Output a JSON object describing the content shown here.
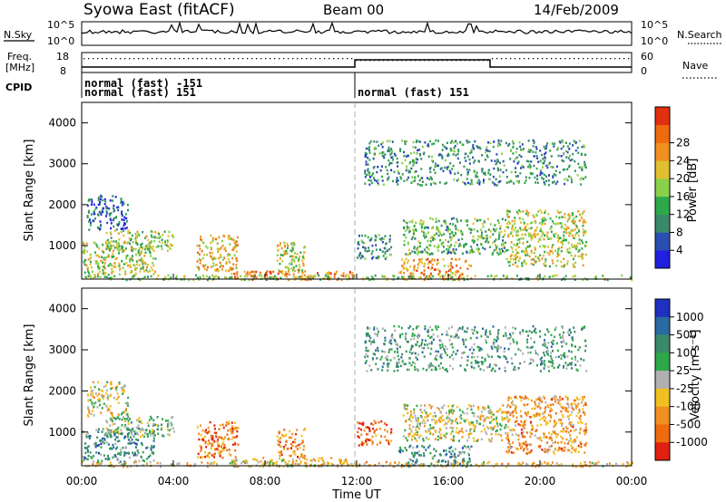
{
  "header": {
    "station": "Syowa East (fitACF)",
    "beam": "Beam 00",
    "date": "14/Feb/2009"
  },
  "top_panels": {
    "nsky_label": "N.Sky",
    "nsearch_label": "N.Search",
    "nsky_ticks": [
      "10^5",
      "10^0"
    ],
    "nsearch_ticks": [
      "10^5",
      "10^0"
    ],
    "freq_label_line1": "Freq.",
    "freq_label_line2": "[MHz]",
    "freq_ticks": [
      "18",
      "8"
    ],
    "nave_ticks": [
      "60",
      "0"
    ],
    "nave_label": "Nave",
    "cpid_label": "CPID",
    "cpid_entries": [
      "normal (fast) -151",
      "normal (fast) 151",
      "normal (fast) 151"
    ]
  },
  "x_axis": {
    "title": "Time UT",
    "ticks": [
      "00:00",
      "04:00",
      "08:00",
      "12:00",
      "16:00",
      "20:00",
      "00:00"
    ]
  },
  "power_panel": {
    "ylabel": "Slant Range [km]",
    "yticks": [
      "1000",
      "2000",
      "3000",
      "4000"
    ],
    "colorbar_label": "Power [dB]",
    "colorbar_ticks": [
      "4",
      "8",
      "12",
      "16",
      "20",
      "24",
      "28"
    ],
    "colors": [
      "#2020e0",
      "#2a4fb0",
      "#3a8a6a",
      "#2ea84a",
      "#8ad04a",
      "#e0c030",
      "#f09020",
      "#f06a10",
      "#e03010"
    ]
  },
  "velocity_panel": {
    "ylabel": "Slant Range [km]",
    "yticks": [
      "1000",
      "2000",
      "3000",
      "4000"
    ],
    "colorbar_label": "Velocity [m s⁻¹]",
    "colorbar_ticks": [
      "1000",
      "500",
      "100",
      "25",
      "-25",
      "-100",
      "-500",
      "-1000"
    ],
    "colors": [
      "#2030c0",
      "#2a6aa0",
      "#3a8a6a",
      "#2ea84a",
      "#b0b0b0",
      "#f0c020",
      "#f09020",
      "#f06a10",
      "#e02010"
    ]
  },
  "chart_data": [
    {
      "type": "heatmap",
      "title": "Power",
      "xlabel": "Time UT",
      "ylabel": "Slant Range [km]",
      "x_range_hours": [
        0,
        24
      ],
      "ylim": [
        180,
        4500
      ],
      "colorbar": {
        "label": "Power [dB]",
        "ticks": [
          4,
          8,
          12,
          16,
          20,
          24,
          28
        ]
      },
      "regions": [
        {
          "t0": 0.0,
          "t1": 3.2,
          "r0": 300,
          "r1": 1100,
          "level": 0.55
        },
        {
          "t0": 1.0,
          "t1": 4.0,
          "r0": 900,
          "r1": 1400,
          "level": 0.5
        },
        {
          "t0": 0.2,
          "t1": 2.0,
          "r0": 1400,
          "r1": 2250,
          "level": 0.2
        },
        {
          "t0": 5.0,
          "t1": 6.8,
          "r0": 400,
          "r1": 1300,
          "level": 0.65
        },
        {
          "t0": 8.5,
          "t1": 9.7,
          "r0": 400,
          "r1": 1100,
          "level": 0.55
        },
        {
          "t0": 6.5,
          "t1": 11.8,
          "r0": 180,
          "r1": 400,
          "level": 0.8
        },
        {
          "t0": 12.0,
          "t1": 13.5,
          "r0": 700,
          "r1": 1300,
          "level": 0.3
        },
        {
          "t0": 13.8,
          "t1": 17.0,
          "r0": 180,
          "r1": 700,
          "level": 0.75
        },
        {
          "t0": 14.0,
          "t1": 18.5,
          "r0": 800,
          "r1": 1700,
          "level": 0.4
        },
        {
          "t0": 18.5,
          "t1": 22.0,
          "r0": 500,
          "r1": 1900,
          "level": 0.55
        },
        {
          "t0": 12.3,
          "t1": 22.0,
          "r0": 2500,
          "r1": 3600,
          "level": 0.3
        },
        {
          "t0": 0.0,
          "t1": 24.0,
          "r0": 180,
          "r1": 300,
          "level": 0.45
        }
      ]
    },
    {
      "type": "heatmap",
      "title": "Velocity",
      "xlabel": "Time UT",
      "ylabel": "Slant Range [km]",
      "x_range_hours": [
        0,
        24
      ],
      "ylim": [
        180,
        4500
      ],
      "colorbar": {
        "label": "Velocity [m s^-1]",
        "ticks": [
          1000,
          500,
          100,
          25,
          -25,
          -100,
          -500,
          -1000
        ]
      },
      "regions": [
        {
          "t0": 0.0,
          "t1": 3.2,
          "r0": 300,
          "r1": 1100,
          "level": 0.3
        },
        {
          "t0": 1.0,
          "t1": 4.0,
          "r0": 900,
          "r1": 1400,
          "level": 0.45
        },
        {
          "t0": 0.2,
          "t1": 2.0,
          "r0": 1400,
          "r1": 2250,
          "level": 0.55
        },
        {
          "t0": 5.0,
          "t1": 6.8,
          "r0": 400,
          "r1": 1300,
          "level": 0.8
        },
        {
          "t0": 8.5,
          "t1": 9.7,
          "r0": 400,
          "r1": 1100,
          "level": 0.75
        },
        {
          "t0": 6.5,
          "t1": 11.8,
          "r0": 180,
          "r1": 400,
          "level": 0.6
        },
        {
          "t0": 12.0,
          "t1": 13.5,
          "r0": 700,
          "r1": 1300,
          "level": 0.85
        },
        {
          "t0": 13.8,
          "t1": 17.0,
          "r0": 180,
          "r1": 700,
          "level": 0.3
        },
        {
          "t0": 14.0,
          "t1": 18.5,
          "r0": 800,
          "r1": 1700,
          "level": 0.55
        },
        {
          "t0": 18.5,
          "t1": 22.0,
          "r0": 500,
          "r1": 1900,
          "level": 0.7
        },
        {
          "t0": 12.3,
          "t1": 22.0,
          "r0": 2500,
          "r1": 3600,
          "level": 0.35
        },
        {
          "t0": 0.0,
          "t1": 24.0,
          "r0": 180,
          "r1": 300,
          "level": 0.6
        }
      ]
    }
  ]
}
